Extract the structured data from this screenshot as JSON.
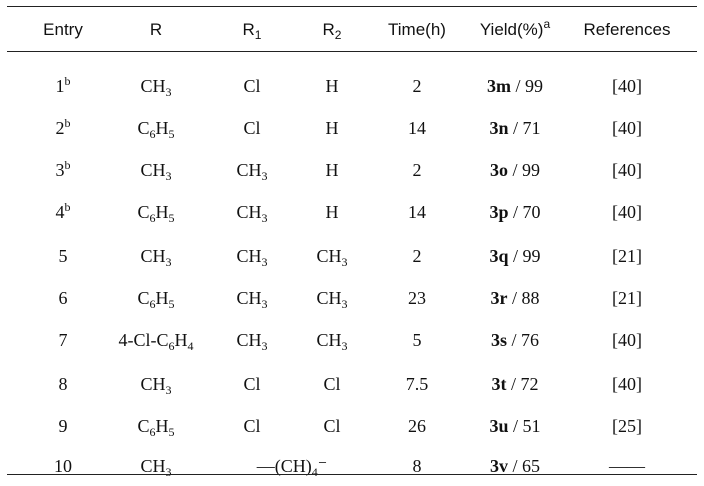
{
  "headers": {
    "entry": "Entry",
    "r": "R",
    "r1_base": "R",
    "r1_sub": "1",
    "r2_base": "R",
    "r2_sub": "2",
    "time": "Time(h)",
    "yield": "Yield(%)",
    "yield_sup": "a",
    "refs": "References"
  },
  "rows": [
    {
      "entry": "1",
      "sup": "b",
      "R": "CH|3",
      "R1": "Cl",
      "R2": "H",
      "time": "2",
      "cmpd": "3m",
      "yield": " / 99",
      "ref": "[40]"
    },
    {
      "entry": "2",
      "sup": "b",
      "R": "C|6|H|5",
      "R1": "Cl",
      "R2": "H",
      "time": "14",
      "cmpd": "3n",
      "yield": " / 71",
      "ref": "[40]"
    },
    {
      "entry": "3",
      "sup": "b",
      "R": "CH|3",
      "R1": "CH|3",
      "R2": "H",
      "time": "2",
      "cmpd": "3o",
      "yield": " / 99",
      "ref": "[40]"
    },
    {
      "entry": "4",
      "sup": "b",
      "R": "C|6|H|5",
      "R1": "CH|3",
      "R2": "H",
      "time": "14",
      "cmpd": "3p",
      "yield": " / 70",
      "ref": "[40]"
    },
    {
      "entry": "5",
      "sup": "",
      "R": "CH|3",
      "R1": "CH|3",
      "R2": "CH|3",
      "time": "2",
      "cmpd": "3q",
      "yield": " / 99",
      "ref": "[21]"
    },
    {
      "entry": "6",
      "sup": "",
      "R": "C|6|H|5",
      "R1": "CH|3",
      "R2": "CH|3",
      "time": "23",
      "cmpd": "3r",
      "yield": " / 88",
      "ref": "[21]"
    },
    {
      "entry": "7",
      "sup": "",
      "R": "4-Cl-C|6|H|4",
      "R1": "CH|3",
      "R2": "CH|3",
      "time": "5",
      "cmpd": "3s",
      "yield": " / 76",
      "ref": "[40]"
    },
    {
      "entry": "8",
      "sup": "",
      "R": "CH|3",
      "R1": "Cl",
      "R2": "Cl",
      "time": "7.5",
      "cmpd": "3t",
      "yield": " / 72",
      "ref": "[40]"
    },
    {
      "entry": "9",
      "sup": "",
      "R": "C|6|H|5",
      "R1": "Cl",
      "R2": "Cl",
      "time": "26",
      "cmpd": "3u",
      "yield": " / 51",
      "ref": "[25]"
    },
    {
      "entry": "10",
      "sup": "",
      "R": "CH|3",
      "merged": "—(CH)|4|⁻",
      "time": "8",
      "cmpd": "3v",
      "yield": " / 65",
      "ref": "——"
    }
  ]
}
